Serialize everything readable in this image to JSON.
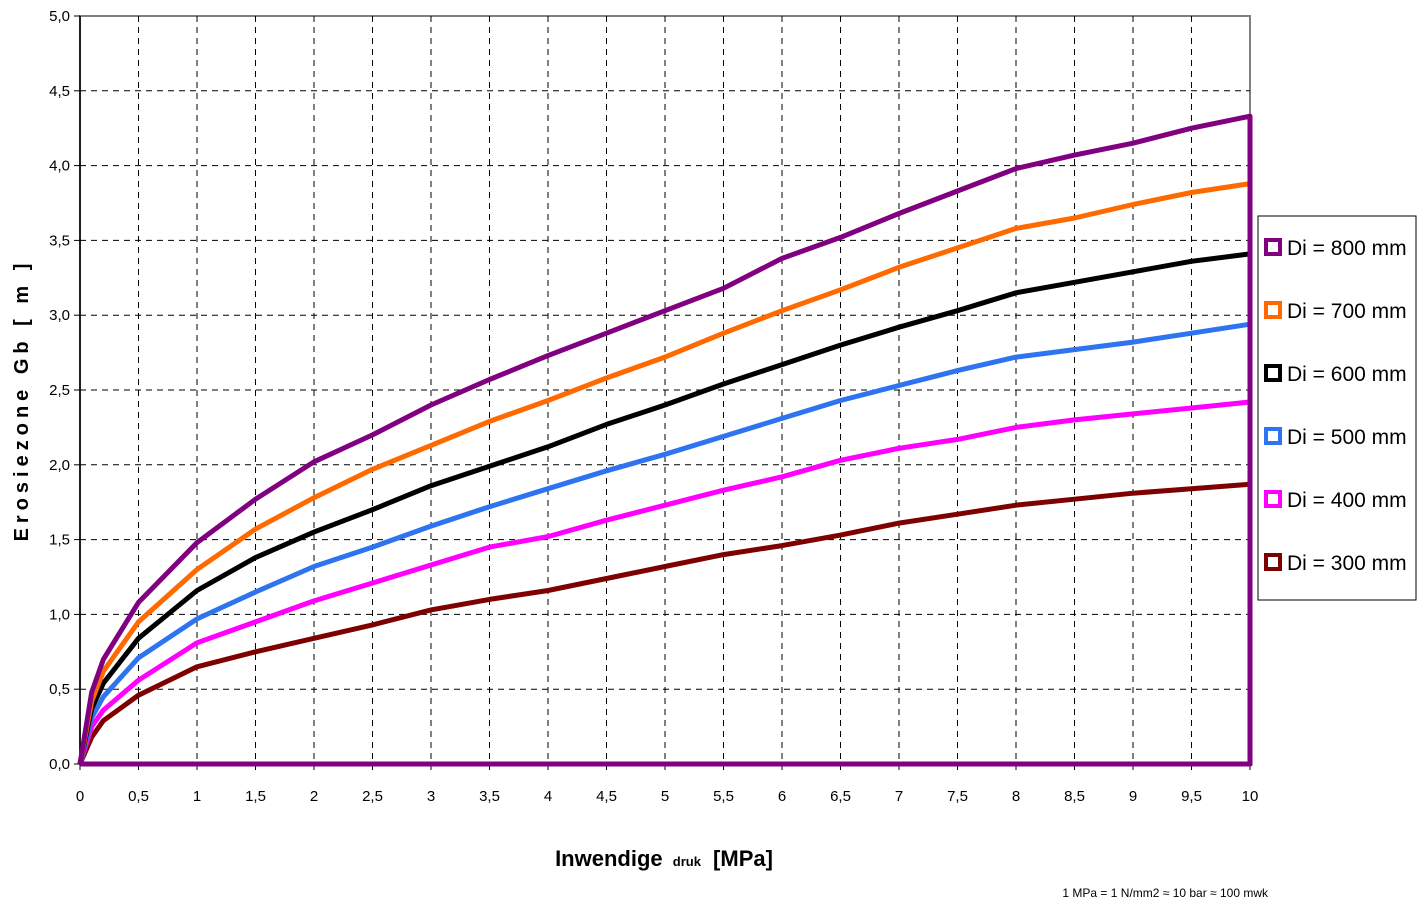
{
  "chart_data": {
    "type": "line",
    "xlabel_main": "Inwendige",
    "xlabel_sub": "druk",
    "xlabel_unit": "[MPa]",
    "ylabel": "Erosiezone Gb [ m ]",
    "footnote": "1 MPa = 1 N/mm2 ≈ 10 bar ≈ 100 mwk",
    "xlim": [
      0,
      10
    ],
    "ylim": [
      0,
      5
    ],
    "x_ticks": [
      "0",
      "0,5",
      "1",
      "1,5",
      "2",
      "2,5",
      "3",
      "3,5",
      "4",
      "4,5",
      "5",
      "5,5",
      "6",
      "6,5",
      "7",
      "7,5",
      "8",
      "8,5",
      "9",
      "9,5",
      "10"
    ],
    "y_ticks": [
      "0,0",
      "0,5",
      "1,0",
      "1,5",
      "2,0",
      "2,5",
      "3,0",
      "3,5",
      "4,0",
      "4,5",
      "5,0"
    ],
    "grid": true,
    "legend_position": "right",
    "x": [
      0,
      0.1,
      0.2,
      0.5,
      1,
      1.5,
      2,
      2.5,
      3,
      3.5,
      4,
      4.5,
      5,
      5.5,
      6,
      6.5,
      7,
      7.5,
      8,
      8.5,
      9,
      9.5,
      10
    ],
    "series": [
      {
        "name": "Di = 800 mm",
        "color": "#800080",
        "values": [
          0,
          0.48,
          0.7,
          1.08,
          1.48,
          1.77,
          2.02,
          2.2,
          2.4,
          2.57,
          2.73,
          2.88,
          3.03,
          3.18,
          3.38,
          3.52,
          3.68,
          3.83,
          3.98,
          4.07,
          4.15,
          4.25,
          4.33
        ]
      },
      {
        "name": "Di = 700 mm",
        "color": "#ff6a00",
        "values": [
          0,
          0.42,
          0.62,
          0.95,
          1.3,
          1.57,
          1.78,
          1.97,
          2.13,
          2.29,
          2.43,
          2.58,
          2.72,
          2.88,
          3.03,
          3.17,
          3.32,
          3.45,
          3.58,
          3.65,
          3.74,
          3.82,
          3.88
        ]
      },
      {
        "name": "Di = 600 mm",
        "color": "#000000",
        "values": [
          0,
          0.37,
          0.54,
          0.84,
          1.16,
          1.38,
          1.55,
          1.7,
          1.86,
          1.99,
          2.12,
          2.27,
          2.4,
          2.54,
          2.67,
          2.8,
          2.92,
          3.03,
          3.15,
          3.22,
          3.29,
          3.36,
          3.41
        ]
      },
      {
        "name": "Di = 500 mm",
        "color": "#2e73f0",
        "values": [
          0,
          0.31,
          0.45,
          0.71,
          0.97,
          1.15,
          1.32,
          1.45,
          1.59,
          1.72,
          1.84,
          1.96,
          2.07,
          2.19,
          2.31,
          2.43,
          2.53,
          2.63,
          2.72,
          2.77,
          2.82,
          2.88,
          2.94
        ]
      },
      {
        "name": "Di = 400 mm",
        "color": "#ff00ff",
        "values": [
          0,
          0.25,
          0.36,
          0.56,
          0.81,
          0.95,
          1.09,
          1.21,
          1.33,
          1.45,
          1.52,
          1.63,
          1.73,
          1.83,
          1.92,
          2.03,
          2.11,
          2.17,
          2.25,
          2.3,
          2.34,
          2.38,
          2.42
        ]
      },
      {
        "name": "Di = 300 mm",
        "color": "#7f0000",
        "values": [
          0,
          0.18,
          0.29,
          0.46,
          0.65,
          0.75,
          0.84,
          0.93,
          1.03,
          1.1,
          1.16,
          1.24,
          1.32,
          1.4,
          1.46,
          1.53,
          1.61,
          1.67,
          1.73,
          1.77,
          1.81,
          1.84,
          1.87
        ]
      }
    ]
  }
}
